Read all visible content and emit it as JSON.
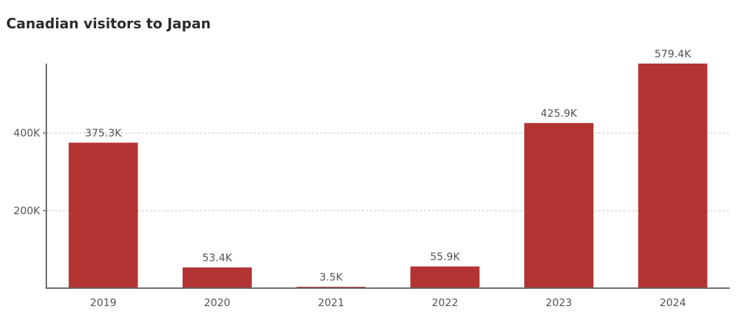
{
  "chart_data": {
    "type": "bar",
    "title": "Canadian visitors to Japan",
    "categories": [
      "2019",
      "2020",
      "2021",
      "2022",
      "2023",
      "2024"
    ],
    "values": [
      375300,
      53400,
      3500,
      55900,
      425900,
      579400
    ],
    "data_labels": [
      "375.3K",
      "53.4K",
      "3.5K",
      "55.9K",
      "425.9K",
      "579.4K"
    ],
    "y_ticks": [
      {
        "value": 200000,
        "label": "200K"
      },
      {
        "value": 400000,
        "label": "400K"
      }
    ],
    "ylim": [
      0,
      579400
    ],
    "grid": true,
    "bar_color": "#b33333",
    "axis_color": "#666666",
    "label_color": "#555555",
    "grid_color": "#b8bcc4"
  }
}
